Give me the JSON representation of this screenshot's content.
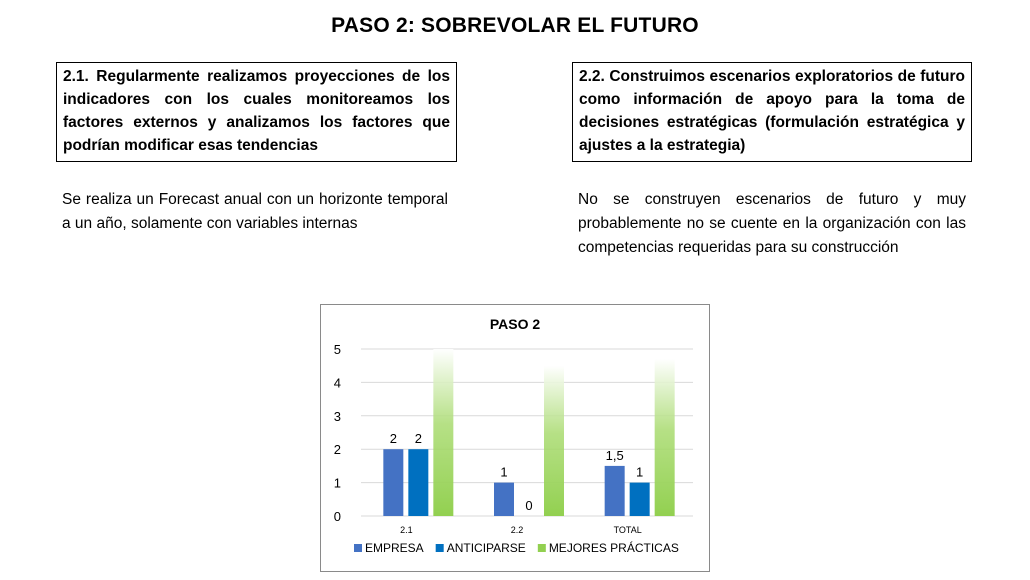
{
  "page": {
    "title": "PASO 2: SOBREVOLAR EL FUTURO",
    "question_1": "2.1. Regularmente realizamos proyecciones de los indicadores con los cuales monitoreamos los factores externos y analizamos los factores que podrían modificar esas tendencias",
    "answer_1": "Se realiza un Forecast anual con un horizonte temporal a un año, solamente con variables internas",
    "question_2": "2.2. Construimos escenarios exploratorios de futuro como información de apoyo para la toma de decisiones estratégicas (formulación estratégica y ajustes a la estrategia)",
    "answer_2": "No se construyen escenarios de futuro y muy probablemente no se cuente en la organización con las competencias requeridas para su construcción"
  },
  "chart_data": {
    "type": "bar",
    "title": "PASO 2",
    "categories": [
      "2.1",
      "2.2",
      "TOTAL"
    ],
    "ylim": [
      0,
      5
    ],
    "yticks": [
      "0",
      "1",
      "2",
      "3",
      "4",
      "5"
    ],
    "grid": true,
    "legend_position": "bottom",
    "series": [
      {
        "name": "EMPRESA",
        "values": [
          2,
          1,
          1.5
        ],
        "labels": [
          "2",
          "1",
          "1,5"
        ],
        "color": "#4472C4",
        "style": "solid"
      },
      {
        "name": "ANTICIPARSE",
        "values": [
          2,
          0,
          1
        ],
        "labels": [
          "2",
          "0",
          "1"
        ],
        "color": "#0070C0",
        "style": "solid"
      },
      {
        "name": "MEJORES PRÁCTICAS",
        "values": [
          5,
          4.5,
          4.7
        ],
        "labels": [
          "",
          "",
          ""
        ],
        "color": "#92D050",
        "style": "gradient"
      }
    ]
  }
}
